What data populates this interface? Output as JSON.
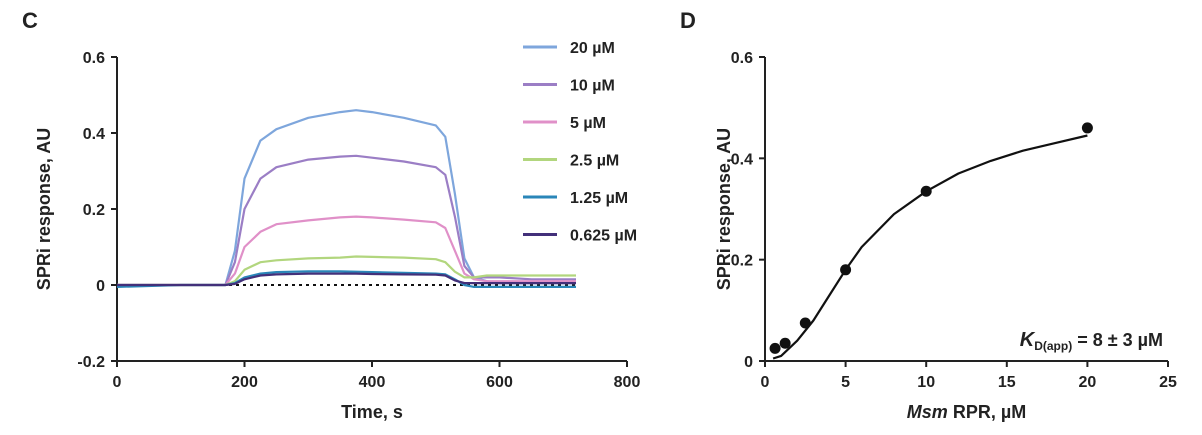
{
  "chart_data": [
    {
      "panel": "C",
      "type": "line",
      "xlabel": "Time, s",
      "ylabel": "SPRi response, AU",
      "xlim": [
        0,
        800
      ],
      "ylim": [
        -0.2,
        0.6
      ],
      "xticks": [
        0,
        200,
        400,
        600,
        800
      ],
      "xtick_labels": [
        "0",
        "200",
        "400",
        "600",
        "800"
      ],
      "yticks": [
        -0.2,
        0,
        0.2,
        0.4,
        0.6
      ],
      "ytick_labels": [
        "-0.2",
        "0",
        "0.2",
        "0.4",
        "0.6"
      ],
      "grid": false,
      "legend_position": "top-right",
      "baseline": {
        "y": 0,
        "style": "dotted"
      },
      "x": [
        0,
        100,
        170,
        185,
        200,
        225,
        250,
        300,
        350,
        375,
        400,
        450,
        500,
        515,
        530,
        545,
        560,
        580,
        600,
        650,
        700,
        720
      ],
      "series": [
        {
          "name": "20 µM",
          "color": "#7ea6dc",
          "values": [
            0,
            0,
            0,
            0.09,
            0.28,
            0.38,
            0.41,
            0.44,
            0.455,
            0.46,
            0.455,
            0.44,
            0.42,
            0.39,
            0.24,
            0.07,
            0.02,
            0.01,
            0.005,
            0.005,
            0.005,
            0.005
          ]
        },
        {
          "name": "10 µM",
          "color": "#9b7ec5",
          "values": [
            0,
            0,
            0,
            0.06,
            0.2,
            0.28,
            0.31,
            0.33,
            0.338,
            0.34,
            0.335,
            0.325,
            0.31,
            0.29,
            0.18,
            0.05,
            0.02,
            0.02,
            0.02,
            0.015,
            0.015,
            0.015
          ]
        },
        {
          "name": "5 µM",
          "color": "#e090c8",
          "values": [
            0,
            0,
            0,
            0.03,
            0.1,
            0.14,
            0.16,
            0.17,
            0.178,
            0.18,
            0.178,
            0.172,
            0.165,
            0.15,
            0.09,
            0.03,
            0.015,
            0.01,
            0.01,
            0.01,
            0.01,
            0.01
          ]
        },
        {
          "name": "2.5 µM",
          "color": "#b2d67e",
          "values": [
            0,
            0,
            0,
            0.01,
            0.04,
            0.06,
            0.065,
            0.07,
            0.072,
            0.075,
            0.074,
            0.072,
            0.068,
            0.06,
            0.035,
            0.02,
            0.02,
            0.025,
            0.025,
            0.025,
            0.025,
            0.025
          ]
        },
        {
          "name": "1.25 µM",
          "color": "#2a86b8",
          "values": [
            -0.005,
            0,
            0,
            0.005,
            0.02,
            0.03,
            0.034,
            0.036,
            0.036,
            0.035,
            0.034,
            0.032,
            0.03,
            0.028,
            0.015,
            0,
            -0.005,
            -0.005,
            -0.005,
            -0.005,
            -0.005,
            -0.005
          ]
        },
        {
          "name": "0.625 µM",
          "color": "#43307a",
          "values": [
            0,
            0,
            0,
            0.003,
            0.015,
            0.025,
            0.028,
            0.03,
            0.03,
            0.03,
            0.029,
            0.028,
            0.027,
            0.025,
            0.012,
            0.005,
            0.005,
            0.005,
            0.005,
            0.005,
            0.005,
            0.005
          ]
        }
      ]
    },
    {
      "panel": "D",
      "type": "scatter",
      "xlabel_italic": "Msm",
      "xlabel_rest": " RPR, µM",
      "ylabel": "SPRi response, AU",
      "xlim": [
        0,
        25
      ],
      "ylim": [
        0,
        0.6
      ],
      "xticks": [
        0,
        5,
        10,
        15,
        20,
        25
      ],
      "xtick_labels": [
        "0",
        "5",
        "10",
        "15",
        "20",
        "25"
      ],
      "yticks": [
        0,
        0.2,
        0.4,
        0.6
      ],
      "ytick_labels": [
        "0",
        "0.2",
        "0.4",
        "0.6"
      ],
      "grid": false,
      "points": {
        "x": [
          0.625,
          1.25,
          2.5,
          5,
          10,
          20
        ],
        "y": [
          0.025,
          0.035,
          0.075,
          0.18,
          0.335,
          0.46
        ]
      },
      "fit_curve": {
        "x": [
          0.5,
          1,
          2,
          3,
          4,
          5,
          6,
          8,
          10,
          12,
          14,
          16,
          18,
          20
        ],
        "y": [
          0.005,
          0.01,
          0.04,
          0.08,
          0.13,
          0.18,
          0.225,
          0.29,
          0.335,
          0.37,
          0.395,
          0.415,
          0.43,
          0.445
        ]
      },
      "annotation": {
        "k": "K",
        "sub": "D(app)",
        "rest": " = 8 ± 3 µM"
      }
    }
  ]
}
